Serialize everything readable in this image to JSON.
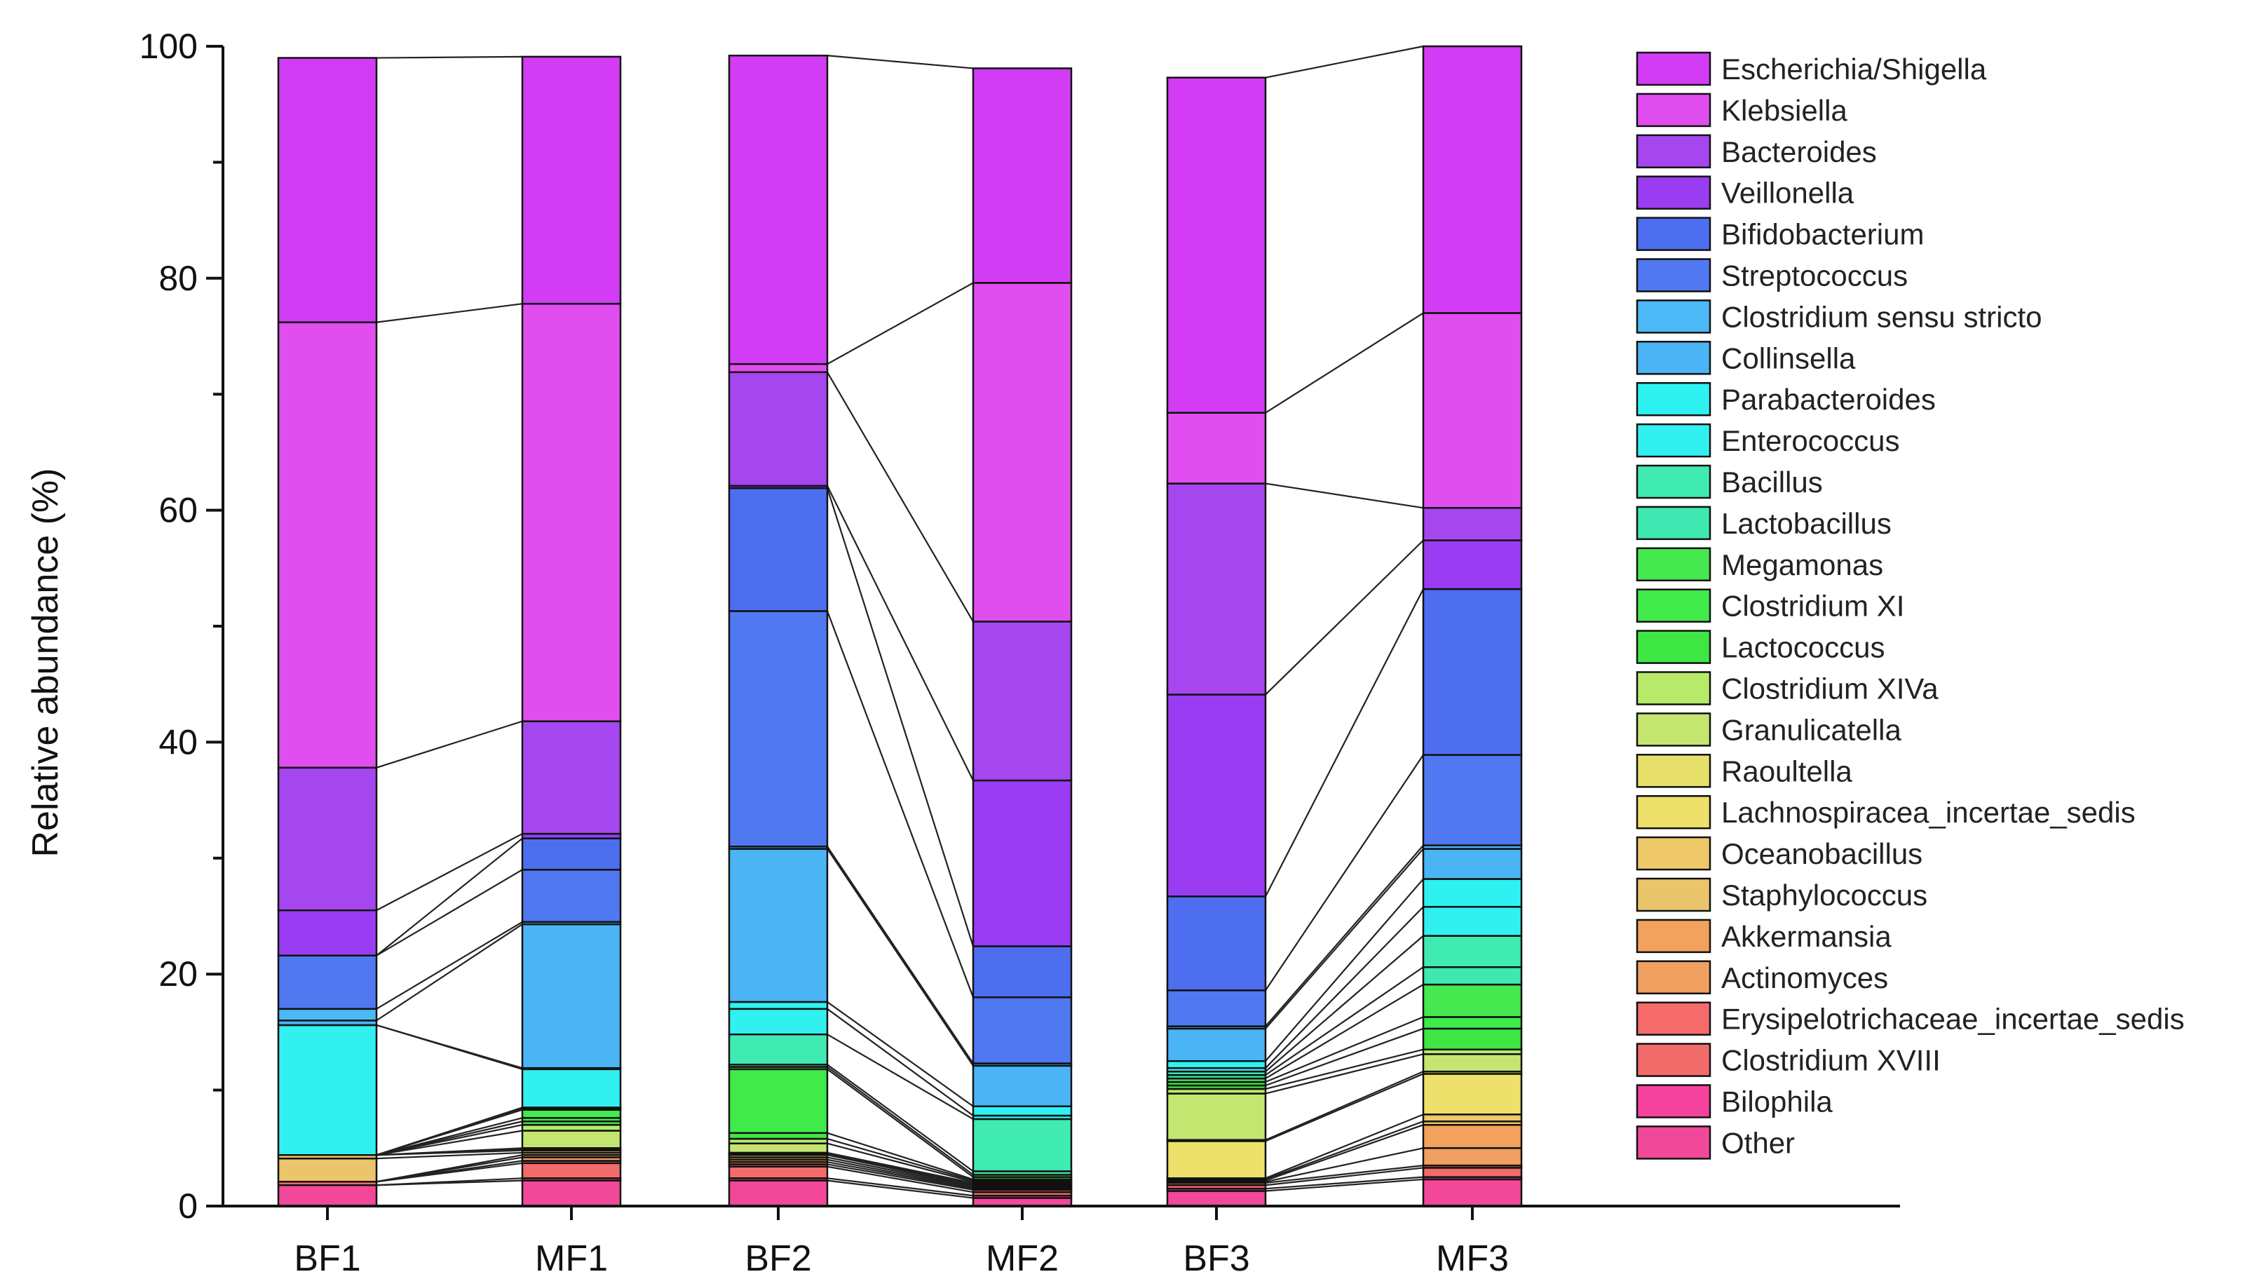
{
  "chart_data": {
    "type": "bar",
    "stacked": true,
    "ylabel": "Relative abundance (%)",
    "xlabel": "",
    "ylim": [
      0,
      100
    ],
    "yticks": [
      0,
      20,
      40,
      60,
      80,
      100
    ],
    "legend_position": "right",
    "categories": [
      "BF1",
      "MF1",
      "BF2",
      "MF2",
      "BF3",
      "MF3"
    ],
    "series": [
      {
        "name": "Other",
        "color": "#f2489a",
        "values": [
          1.8,
          2.2,
          2.2,
          0.7,
          1.3,
          2.3
        ]
      },
      {
        "name": "Bilophila",
        "color": "#f5429c",
        "values": [
          0.0,
          0.2,
          0.2,
          0.2,
          0.2,
          0.2
        ]
      },
      {
        "name": "Clostridium XVIII",
        "color": "#f26b6b",
        "values": [
          0.3,
          1.3,
          1.0,
          0.3,
          0.3,
          0.8
        ]
      },
      {
        "name": "Erysipelotrichaceae_incertae_sedis",
        "color": "#f56b6b",
        "values": [
          0.0,
          0.2,
          0.2,
          0.2,
          0.2,
          0.2
        ]
      },
      {
        "name": "Actinomyces",
        "color": "#f0a060",
        "values": [
          0.0,
          0.3,
          0.2,
          0.1,
          0.1,
          1.5
        ]
      },
      {
        "name": "Akkermansia",
        "color": "#f2a25c",
        "values": [
          0.0,
          0.2,
          0.2,
          0.1,
          0.1,
          2.0
        ]
      },
      {
        "name": "Staphylococcus",
        "color": "#ebc56b",
        "values": [
          2.0,
          0.2,
          0.2,
          0.1,
          0.1,
          0.3
        ]
      },
      {
        "name": "Oceanobacillus",
        "color": "#efc86a",
        "values": [
          0.3,
          0.2,
          0.2,
          0.1,
          0.1,
          0.6
        ]
      },
      {
        "name": "Lachnospiracea_incertae_sedis",
        "color": "#ede06b",
        "values": [
          0.0,
          0.1,
          0.1,
          0.1,
          3.2,
          3.5
        ]
      },
      {
        "name": "Raoultella",
        "color": "#e6e06a",
        "values": [
          0.0,
          0.1,
          0.1,
          0.1,
          0.1,
          0.2
        ]
      },
      {
        "name": "Granulicatella",
        "color": "#c4e670",
        "values": [
          0.0,
          1.5,
          0.8,
          0.1,
          4.0,
          1.5
        ]
      },
      {
        "name": "Clostridium XIVa",
        "color": "#b8ea6a",
        "values": [
          0.0,
          0.5,
          0.4,
          0.1,
          0.4,
          0.4
        ]
      },
      {
        "name": "Lactococcus",
        "color": "#3ee644",
        "values": [
          0.0,
          0.3,
          0.5,
          0.1,
          0.3,
          1.8
        ]
      },
      {
        "name": "Clostridium XI",
        "color": "#3fea4a",
        "values": [
          0.0,
          0.3,
          5.5,
          0.2,
          0.3,
          1.0
        ]
      },
      {
        "name": "Megamonas",
        "color": "#45e84e",
        "values": [
          0.0,
          0.7,
          0.2,
          0.2,
          0.3,
          2.8
        ]
      },
      {
        "name": "Lactobacillus",
        "color": "#3ee8b0",
        "values": [
          0.0,
          0.1,
          0.2,
          0.3,
          0.3,
          1.5
        ]
      },
      {
        "name": "Bacillus",
        "color": "#40ebb2",
        "values": [
          0.0,
          0.1,
          2.6,
          4.5,
          0.3,
          2.7
        ]
      },
      {
        "name": "Enterococcus",
        "color": "#33f0f0",
        "values": [
          11.2,
          3.3,
          2.2,
          0.3,
          0.3,
          2.5
        ]
      },
      {
        "name": "Parabacteroides",
        "color": "#2ef2f2",
        "values": [
          0.0,
          0.1,
          0.6,
          0.8,
          0.6,
          2.4
        ]
      },
      {
        "name": "Collinsella",
        "color": "#4ab4f5",
        "values": [
          0.4,
          12.4,
          13.2,
          3.5,
          2.8,
          2.6
        ]
      },
      {
        "name": "Clostridium sensu stricto",
        "color": "#4cb8f6",
        "values": [
          1.0,
          0.2,
          0.2,
          0.2,
          0.2,
          0.3
        ]
      },
      {
        "name": "Streptococcus",
        "color": "#5078f0",
        "values": [
          4.6,
          4.5,
          20.3,
          5.7,
          3.1,
          7.8
        ]
      },
      {
        "name": "Bifidobacterium",
        "color": "#4e6ef0",
        "values": [
          0.0,
          2.7,
          10.6,
          4.4,
          8.1,
          14.3
        ]
      },
      {
        "name": "Veillonella",
        "color": "#9a3cf2",
        "values": [
          3.9,
          0.4,
          0.2,
          14.3,
          17.4,
          4.2
        ]
      },
      {
        "name": "Bacteroides",
        "color": "#a646ef",
        "values": [
          12.3,
          9.7,
          9.8,
          13.7,
          18.2,
          2.8
        ]
      },
      {
        "name": "Klebsiella",
        "color": "#e04ef0",
        "values": [
          38.4,
          36.0,
          0.7,
          29.2,
          6.1,
          16.8
        ]
      },
      {
        "name": "Escherichia/Shigella",
        "color": "#d23cf4",
        "values": [
          22.8,
          21.3,
          26.6,
          18.5,
          28.9,
          23.0
        ]
      }
    ],
    "legend_order": [
      "Escherichia/Shigella",
      "Klebsiella",
      "Bacteroides",
      "Veillonella",
      "Bifidobacterium",
      "Streptococcus",
      "Clostridium sensu stricto",
      "Collinsella",
      "Parabacteroides",
      "Enterococcus",
      "Bacillus",
      "Lactobacillus",
      "Megamonas",
      "Clostridium XI",
      "Lactococcus",
      "Clostridium XIVa",
      "Granulicatella",
      "Raoultella",
      "Lachnospiracea_incertae_sedis",
      "Oceanobacillus",
      "Staphylococcus",
      "Akkermansia",
      "Actinomyces",
      "Erysipelotrichaceae_incertae_sedis",
      "Clostridium XVIII",
      "Bilophila",
      "Other"
    ]
  }
}
